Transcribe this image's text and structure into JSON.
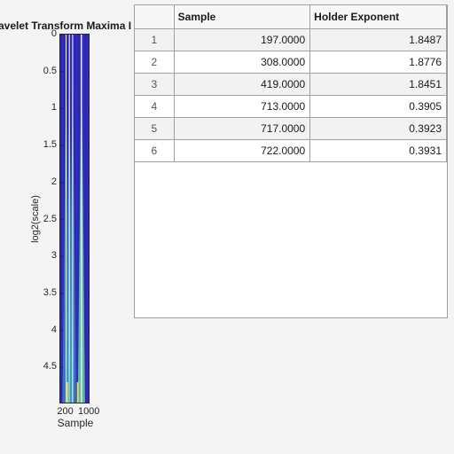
{
  "chart_data": {
    "type": "heatmap",
    "title": "avelet Transform Maxima I",
    "xlabel": "Sample",
    "ylabel": "log2(scale)",
    "xlim": [
      1,
      1024
    ],
    "ylim": [
      0,
      5
    ],
    "y_reversed": true,
    "xticks": [
      "200",
      "1000"
    ],
    "yticks": [
      "0",
      "0.5",
      "1",
      "1.5",
      "2",
      "2.5",
      "3",
      "3.5",
      "4",
      "4.5"
    ],
    "maxima_lines_at_samples": [
      197,
      308,
      419,
      713,
      717,
      722
    ],
    "colormap": "parula",
    "background_color": "#2f27b5"
  },
  "table": {
    "headers": [
      "",
      "Sample",
      "Holder Exponent"
    ],
    "rows": [
      [
        "1",
        "197.0000",
        "1.8487"
      ],
      [
        "2",
        "308.0000",
        "1.8776"
      ],
      [
        "3",
        "419.0000",
        "1.8451"
      ],
      [
        "4",
        "713.0000",
        "0.3905"
      ],
      [
        "5",
        "717.0000",
        "0.3923"
      ],
      [
        "6",
        "722.0000",
        "0.3931"
      ]
    ]
  }
}
